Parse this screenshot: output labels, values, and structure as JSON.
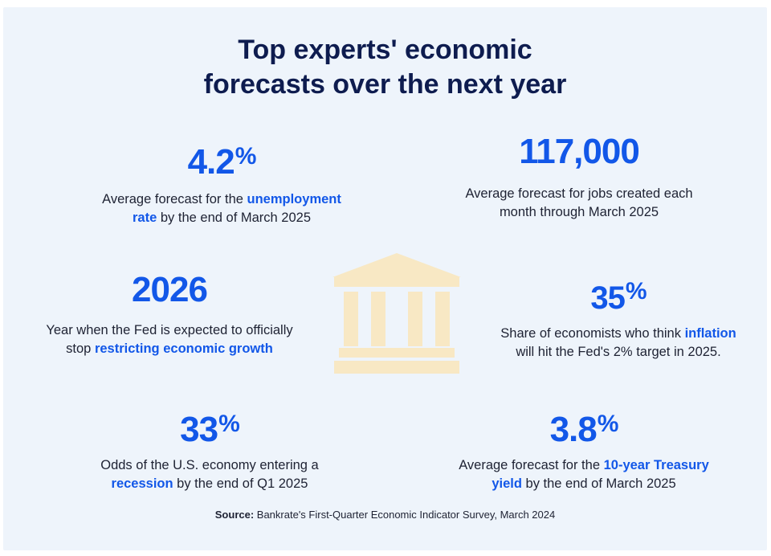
{
  "title": {
    "line1": "Top experts' economic",
    "line2": "forecasts over the next year"
  },
  "stats": [
    {
      "value": "4.2",
      "unit": "%",
      "desc_before": "Average forecast for the ",
      "desc_link": "unemployment",
      "desc_link2": "rate",
      "desc_after": " by the end of March 2025"
    },
    {
      "value": "117,000",
      "desc_line1": "Average forecast for jobs created each",
      "desc_line2": "month through March 2025"
    },
    {
      "value": "2026",
      "desc_line1": "Year when the Fed is expected to officially",
      "desc_before": "stop ",
      "desc_link": "restricting economic growth"
    },
    {
      "value": "35",
      "unit": "%",
      "desc_before": "Share of economists who think ",
      "desc_link": "inflation",
      "desc_line2": "will hit the Fed's 2% target in 2025."
    },
    {
      "value": "33",
      "unit": "%",
      "desc_line1": "Odds of the U.S. economy entering a",
      "desc_link": "recession",
      "desc_after": " by the end of Q1 2025"
    },
    {
      "value": "3.8",
      "unit": "%",
      "desc_before": "Average forecast for the ",
      "desc_link": "10-year Treasury",
      "desc_link2": "yield",
      "desc_after": " by the end of March 2025"
    }
  ],
  "icon": "bank-building-icon",
  "colors": {
    "accent": "#1257e8",
    "title": "#0e1c4f",
    "background": "#eef4fb",
    "icon": "#f8e8c4"
  },
  "source": {
    "label": "Source:",
    "text": " Bankrate's First-Quarter Economic Indicator Survey, March 2024"
  }
}
